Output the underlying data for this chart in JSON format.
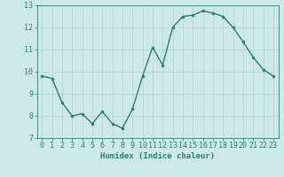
{
  "x": [
    0,
    1,
    2,
    3,
    4,
    5,
    6,
    7,
    8,
    9,
    10,
    11,
    12,
    13,
    14,
    15,
    16,
    17,
    18,
    19,
    20,
    21,
    22,
    23
  ],
  "y": [
    9.8,
    9.7,
    8.6,
    8.0,
    8.1,
    7.65,
    8.2,
    7.65,
    7.45,
    8.3,
    9.8,
    11.1,
    10.3,
    12.0,
    12.5,
    12.55,
    12.75,
    12.65,
    12.5,
    12.0,
    11.35,
    10.65,
    10.1,
    9.8
  ],
  "line_color": "#2e7d6e",
  "marker": "o",
  "marker_size": 2.0,
  "linewidth": 1.0,
  "xlabel": "Humidex (Indice chaleur)",
  "xlim": [
    -0.5,
    23.5
  ],
  "ylim": [
    7,
    13
  ],
  "yticks": [
    7,
    8,
    9,
    10,
    11,
    12,
    13
  ],
  "xticks": [
    0,
    1,
    2,
    3,
    4,
    5,
    6,
    7,
    8,
    9,
    10,
    11,
    12,
    13,
    14,
    15,
    16,
    17,
    18,
    19,
    20,
    21,
    22,
    23
  ],
  "xtick_labels": [
    "0",
    "1",
    "2",
    "3",
    "4",
    "5",
    "6",
    "7",
    "8",
    "9",
    "10",
    "11",
    "12",
    "13",
    "14",
    "15",
    "16",
    "17",
    "18",
    "19",
    "20",
    "21",
    "22",
    "23"
  ],
  "bg_color": "#cce9e5",
  "grid_color": "#b0d4d0",
  "tick_color": "#2e7d6e",
  "label_color": "#2e7d6e",
  "xlabel_fontsize": 6.5,
  "tick_fontsize": 6.0
}
